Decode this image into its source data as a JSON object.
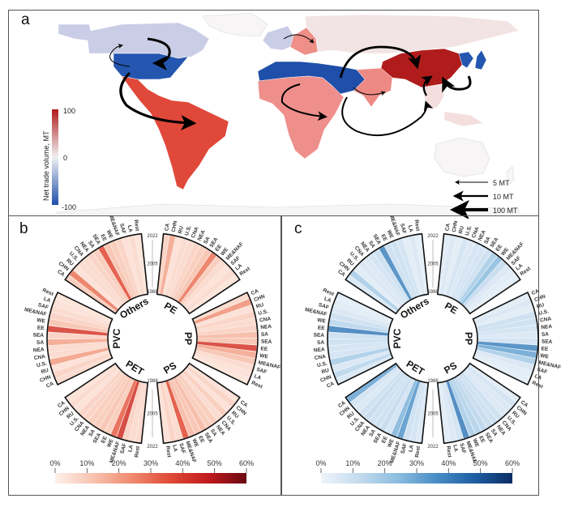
{
  "figure": {
    "panels": [
      {
        "letter": "a"
      },
      {
        "letter": "b"
      },
      {
        "letter": "c"
      }
    ]
  },
  "chart_data": [
    {
      "type": "heatmap",
      "panel": "a",
      "title": "",
      "description": "World choropleth map of net trade volume with trade-flow arrows",
      "colorbar": {
        "label": "Net trade volume, MT",
        "min": -100,
        "max": 100,
        "ticks": [
          "100",
          "0",
          "-100"
        ],
        "colors": {
          "low": "#1f4fa8",
          "mid": "#f0f0f3",
          "high": "#b01c1c"
        }
      },
      "regions": [
        {
          "name": "CA",
          "value": -20,
          "color": "#c9cde6"
        },
        {
          "name": "U.S.",
          "value": -70,
          "color": "#2456b0"
        },
        {
          "name": "LA",
          "value": 65,
          "color": "#e0483a"
        },
        {
          "name": "WE",
          "value": -20,
          "color": "#c9cde6"
        },
        {
          "name": "EE",
          "value": 40,
          "color": "#ee8f88"
        },
        {
          "name": "RU",
          "value": 5,
          "color": "#f2e4e4"
        },
        {
          "name": "ME&NAF",
          "value": -80,
          "color": "#1f4fa8"
        },
        {
          "name": "SAF",
          "value": 40,
          "color": "#ee8f8c"
        },
        {
          "name": "SA",
          "value": 45,
          "color": "#ee8a84"
        },
        {
          "name": "CHN",
          "value": 95,
          "color": "#b01c1c"
        },
        {
          "name": "NEA",
          "value": -70,
          "color": "#2456b0"
        },
        {
          "name": "SEA",
          "value": 8,
          "color": "#f4dede"
        },
        {
          "name": "Rest",
          "value": 2,
          "color": "#f3eeee"
        }
      ],
      "flow_legend": [
        {
          "label": "5 MT"
        },
        {
          "label": "10 MT"
        },
        {
          "label": "100 MT"
        }
      ]
    },
    {
      "type": "heatmap",
      "panel": "b",
      "layout": "circular",
      "sectors": [
        "PE",
        "PP",
        "PS",
        "PET",
        "PVC",
        "Others"
      ],
      "regions": [
        "CA",
        "CHN",
        "RU",
        "U.S.",
        "CNA",
        "NEA",
        "SA",
        "SEA",
        "EE",
        "WE",
        "ME&NAF",
        "SAF",
        "LA",
        "Rest"
      ],
      "year_ticks": [
        "1988",
        "2005",
        "2022"
      ],
      "colorbar": {
        "ticks": [
          "0%",
          "10%",
          "20%",
          "30%",
          "40%",
          "50%",
          "60%"
        ],
        "min": 0,
        "max": 60,
        "colors": [
          "#fdf0ea",
          "#f7c2ae",
          "#ef8a6e",
          "#e04a36",
          "#c01a1e",
          "#6a0a12"
        ]
      },
      "shares_percent": {
        "PE": [
          8,
          18,
          4,
          6,
          6,
          8,
          10,
          12,
          28,
          10,
          6,
          4,
          6,
          3
        ],
        "PP": [
          6,
          22,
          4,
          8,
          6,
          8,
          14,
          12,
          40,
          18,
          12,
          6,
          4,
          3
        ],
        "PS": [
          4,
          8,
          4,
          10,
          6,
          10,
          10,
          14,
          12,
          14,
          36,
          6,
          8,
          4
        ],
        "PET": [
          4,
          6,
          4,
          8,
          8,
          10,
          10,
          12,
          10,
          32,
          42,
          8,
          6,
          6
        ],
        "PVC": [
          6,
          8,
          4,
          20,
          6,
          6,
          18,
          8,
          40,
          12,
          8,
          6,
          4,
          3
        ],
        "Others": [
          10,
          28,
          4,
          6,
          6,
          8,
          10,
          36,
          12,
          10,
          8,
          4,
          6,
          3
        ]
      }
    },
    {
      "type": "heatmap",
      "panel": "c",
      "layout": "circular",
      "sectors": [
        "PE",
        "PP",
        "PS",
        "PET",
        "PVC",
        "Others"
      ],
      "regions": [
        "CA",
        "CHN",
        "RU",
        "U.S.",
        "CNA",
        "NEA",
        "SA",
        "SEA",
        "EE",
        "WE",
        "ME&NAF",
        "SAF",
        "LA",
        "Rest"
      ],
      "year_ticks": [
        "1988",
        "2005",
        "2022"
      ],
      "colorbar": {
        "ticks": [
          "0%",
          "10%",
          "20%",
          "30%",
          "40%",
          "50%",
          "60%"
        ],
        "min": 0,
        "max": 60,
        "colors": [
          "#eef4fa",
          "#c4dbee",
          "#8cbddf",
          "#4a8ec6",
          "#1e5fa4",
          "#0a2d64"
        ]
      },
      "shares_percent": {
        "PE": [
          4,
          6,
          4,
          8,
          6,
          8,
          8,
          10,
          18,
          24,
          12,
          6,
          4,
          3
        ],
        "PP": [
          4,
          6,
          4,
          10,
          10,
          8,
          6,
          8,
          38,
          30,
          18,
          6,
          4,
          3
        ],
        "PS": [
          4,
          8,
          6,
          6,
          10,
          10,
          12,
          14,
          16,
          18,
          40,
          8,
          6,
          4
        ],
        "PET": [
          30,
          8,
          6,
          10,
          12,
          10,
          10,
          12,
          8,
          26,
          34,
          10,
          8,
          6
        ],
        "PVC": [
          6,
          14,
          6,
          18,
          8,
          8,
          10,
          10,
          40,
          14,
          10,
          6,
          4,
          3
        ],
        "Others": [
          6,
          18,
          4,
          6,
          6,
          8,
          10,
          38,
          10,
          10,
          8,
          4,
          6,
          3
        ]
      }
    }
  ]
}
